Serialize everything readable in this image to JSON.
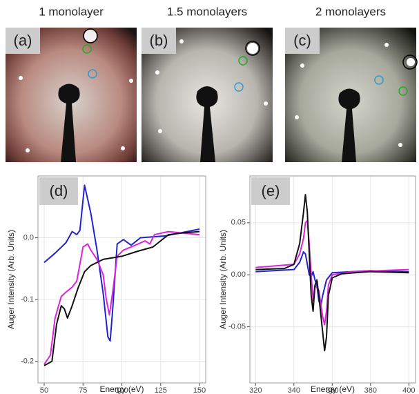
{
  "images": [
    {
      "title": "1 monolayer",
      "label": "(a)"
    },
    {
      "title": "1.5 monolayers",
      "label": "(b)"
    },
    {
      "title": "2 monolayers",
      "label": "(c)"
    }
  ],
  "chart_data": [
    {
      "type": "line",
      "label": "(d)",
      "xlabel": "Energy (eV)",
      "ylabel": "Auger Intensity (Arb. Units)",
      "xlim": [
        46,
        154
      ],
      "xticks": [
        50,
        75,
        100,
        125,
        150
      ],
      "ylim": [
        -0.235,
        0.1
      ],
      "yticks": [
        -0.2,
        -0.1,
        {
          "value": 0,
          "label": "0.0"
        }
      ],
      "grid": true,
      "series": [
        {
          "color": "#2222cc",
          "x": [
            50,
            57,
            64,
            68,
            71,
            73,
            76,
            80,
            84,
            88,
            91,
            92.5,
            94,
            97,
            101,
            106,
            112,
            128,
            150
          ],
          "values": [
            -0.04,
            -0.025,
            -0.008,
            0.01,
            0.005,
            0.012,
            0.085,
            0.04,
            -0.02,
            -0.09,
            -0.16,
            -0.167,
            -0.12,
            -0.01,
            -0.003,
            -0.012,
            0.0,
            0.003,
            0.014
          ]
        },
        {
          "color": "#dd22dd",
          "x": [
            50,
            54,
            57,
            61,
            64,
            68,
            71,
            75,
            78,
            80,
            84,
            88,
            90,
            92,
            94,
            97,
            101,
            106,
            115,
            118,
            121,
            130,
            150
          ],
          "values": [
            -0.205,
            -0.19,
            -0.13,
            -0.095,
            -0.088,
            -0.08,
            -0.07,
            -0.015,
            -0.01,
            -0.02,
            -0.035,
            -0.06,
            -0.1,
            -0.125,
            -0.09,
            -0.03,
            -0.02,
            -0.015,
            -0.005,
            -0.01,
            0.005,
            0.01,
            0.005
          ]
        },
        {
          "color": "#111111",
          "x": [
            50,
            55,
            58,
            61,
            63,
            65,
            68,
            72,
            76,
            80,
            84,
            88,
            95,
            100,
            110,
            120,
            130,
            140,
            150
          ],
          "values": [
            -0.207,
            -0.2,
            -0.14,
            -0.11,
            -0.115,
            -0.13,
            -0.11,
            -0.08,
            -0.055,
            -0.045,
            -0.04,
            -0.035,
            -0.032,
            -0.03,
            -0.022,
            -0.015,
            0.005,
            0.008,
            0.01
          ]
        }
      ]
    },
    {
      "type": "line",
      "label": "(e)",
      "xlabel": "Energy (eV)",
      "ylabel": "Auger Intensity (Arb. Units)",
      "xlim": [
        317,
        403.5
      ],
      "xticks": [
        320,
        340,
        360,
        380,
        400
      ],
      "ylim": [
        -0.104,
        0.095
      ],
      "yticks": [
        -0.05,
        {
          "value": 0,
          "label": "0.00"
        },
        0.05
      ],
      "grid": true,
      "series": [
        {
          "color": "#2222cc",
          "x": [
            320,
            340,
            343,
            345,
            346,
            347,
            348,
            349,
            350,
            351,
            352,
            353,
            354,
            355,
            357,
            360,
            380,
            400
          ],
          "values": [
            0.003,
            0.005,
            0.012,
            0.022,
            0.02,
            0.01,
            0.0,
            -0.002,
            0.003,
            -0.005,
            -0.01,
            -0.025,
            -0.03,
            -0.02,
            -0.005,
            0.002,
            0.004,
            0.003
          ]
        },
        {
          "color": "#dd22dd",
          "x": [
            320,
            340,
            343,
            345,
            346,
            347,
            348,
            349,
            350,
            351,
            353,
            355,
            356,
            357,
            358,
            360,
            370,
            400
          ],
          "values": [
            0.007,
            0.01,
            0.02,
            0.035,
            0.05,
            0.052,
            0.03,
            0.0,
            -0.025,
            -0.01,
            -0.015,
            -0.04,
            -0.048,
            -0.035,
            -0.01,
            0.0,
            0.003,
            0.005
          ]
        },
        {
          "color": "#111111",
          "x": [
            320,
            335,
            340,
            343,
            345,
            346,
            347,
            348,
            349,
            350,
            351,
            352,
            353,
            355,
            356,
            357,
            358,
            360,
            365,
            380,
            400
          ],
          "values": [
            0.005,
            0.006,
            0.01,
            0.03,
            0.06,
            0.077,
            0.06,
            0.02,
            -0.02,
            -0.035,
            -0.01,
            -0.005,
            -0.02,
            -0.055,
            -0.073,
            -0.06,
            -0.02,
            -0.003,
            0.001,
            0.003,
            0.002
          ]
        }
      ]
    }
  ]
}
